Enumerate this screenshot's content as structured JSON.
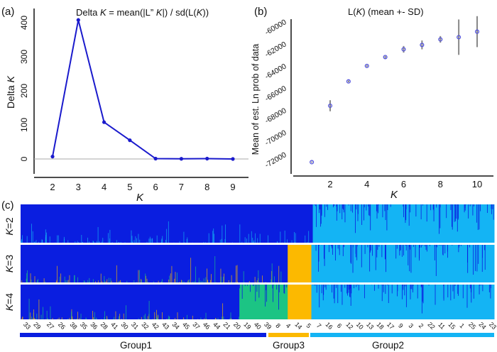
{
  "chart_data": [
    {
      "panel_label": "(a)",
      "type": "line",
      "title_parts": [
        "Delta ",
        "K",
        " = mean(|L” ",
        "K",
        "|) / sd(L(",
        "K",
        "))"
      ],
      "xlabel": "K",
      "ylabel_parts": [
        "Delta ",
        "K"
      ],
      "x": [
        2,
        3,
        4,
        5,
        6,
        7,
        8,
        9
      ],
      "values": [
        7,
        408,
        108,
        55,
        1,
        0.5,
        1,
        0
      ],
      "xticks": [
        2,
        3,
        4,
        5,
        6,
        7,
        8,
        9
      ],
      "yticks": [
        0,
        100,
        200,
        300,
        400
      ],
      "xlim": [
        1.3,
        9.6
      ],
      "ylim": [
        -43,
        440
      ],
      "reference_line": 0,
      "color": "#1a1acc",
      "grid": false
    },
    {
      "panel_label": "(b)",
      "type": "scatter",
      "title_parts": [
        "L(",
        "K",
        ") (mean +- SD)"
      ],
      "xlabel": "K",
      "ylabel": "Mean of est. Ln prob of data",
      "x": [
        1,
        2,
        3,
        4,
        5,
        6,
        7,
        8,
        9,
        10
      ],
      "values": [
        -72800,
        -67700,
        -65500,
        -64100,
        -63300,
        -62600,
        -62200,
        -61700,
        -61500,
        -61000
      ],
      "sd": [
        50,
        500,
        80,
        80,
        100,
        300,
        400,
        300,
        1600,
        1400
      ],
      "xticks": [
        2,
        4,
        6,
        8,
        10
      ],
      "yticks": [
        -60000,
        -62000,
        -64000,
        -66000,
        -68000,
        -70000,
        -72000
      ],
      "xlim": [
        0.1,
        10.9
      ],
      "ylim": [
        -73800,
        -59900
      ],
      "marker_color": "#5555dd",
      "errorbar_color": "#888888",
      "grid": false
    },
    {
      "panel_label": "(c)",
      "type": "bar",
      "subtype": "stacked-admixture",
      "colors": {
        "cluster_blue": "#0a1ee0",
        "cluster_cyan": "#14b4f4",
        "cluster_orange": "#fcb900",
        "cluster_green": "#1cc484"
      },
      "rows": [
        {
          "label_parts": [
            "K",
            "=2"
          ],
          "blocks": [
            {
              "cluster": "cluster_blue",
              "from": 0,
              "to": 0.617
            },
            {
              "cluster": "cluster_cyan",
              "from": 0.617,
              "to": 1
            }
          ]
        },
        {
          "label_parts": [
            "K",
            "=3"
          ],
          "blocks": [
            {
              "cluster": "cluster_blue",
              "from": 0,
              "to": 0.564
            },
            {
              "cluster": "cluster_orange",
              "from": 0.564,
              "to": 0.614
            },
            {
              "cluster": "cluster_cyan",
              "from": 0.614,
              "to": 1
            }
          ]
        },
        {
          "label_parts": [
            "K",
            "=4"
          ],
          "blocks": [
            {
              "cluster": "cluster_blue",
              "from": 0,
              "to": 0.462
            },
            {
              "cluster": "cluster_green",
              "from": 0.462,
              "to": 0.564
            },
            {
              "cluster": "cluster_orange",
              "from": 0.564,
              "to": 0.614
            },
            {
              "cluster": "cluster_cyan",
              "from": 0.614,
              "to": 1
            }
          ]
        }
      ],
      "population_labels": [
        "33",
        "29",
        "27",
        "26",
        "38",
        "35",
        "36",
        "28",
        "41",
        "30",
        "31",
        "32",
        "42",
        "43",
        "34",
        "45",
        "37",
        "46",
        "44",
        "21",
        "20",
        "19",
        "40",
        "39",
        "8",
        "4",
        "14",
        "5",
        "7",
        "16",
        "6",
        "12",
        "10",
        "13",
        "18",
        "17",
        "9",
        "3",
        "2",
        "22",
        "11",
        "15",
        "1",
        "25",
        "24",
        "23"
      ],
      "groups": [
        {
          "name": "Group1",
          "color": "#0a1ee0"
        },
        {
          "name": "Group3",
          "color": "#fcb900"
        },
        {
          "name": "Group2",
          "color": "#14b4f4"
        }
      ]
    }
  ]
}
